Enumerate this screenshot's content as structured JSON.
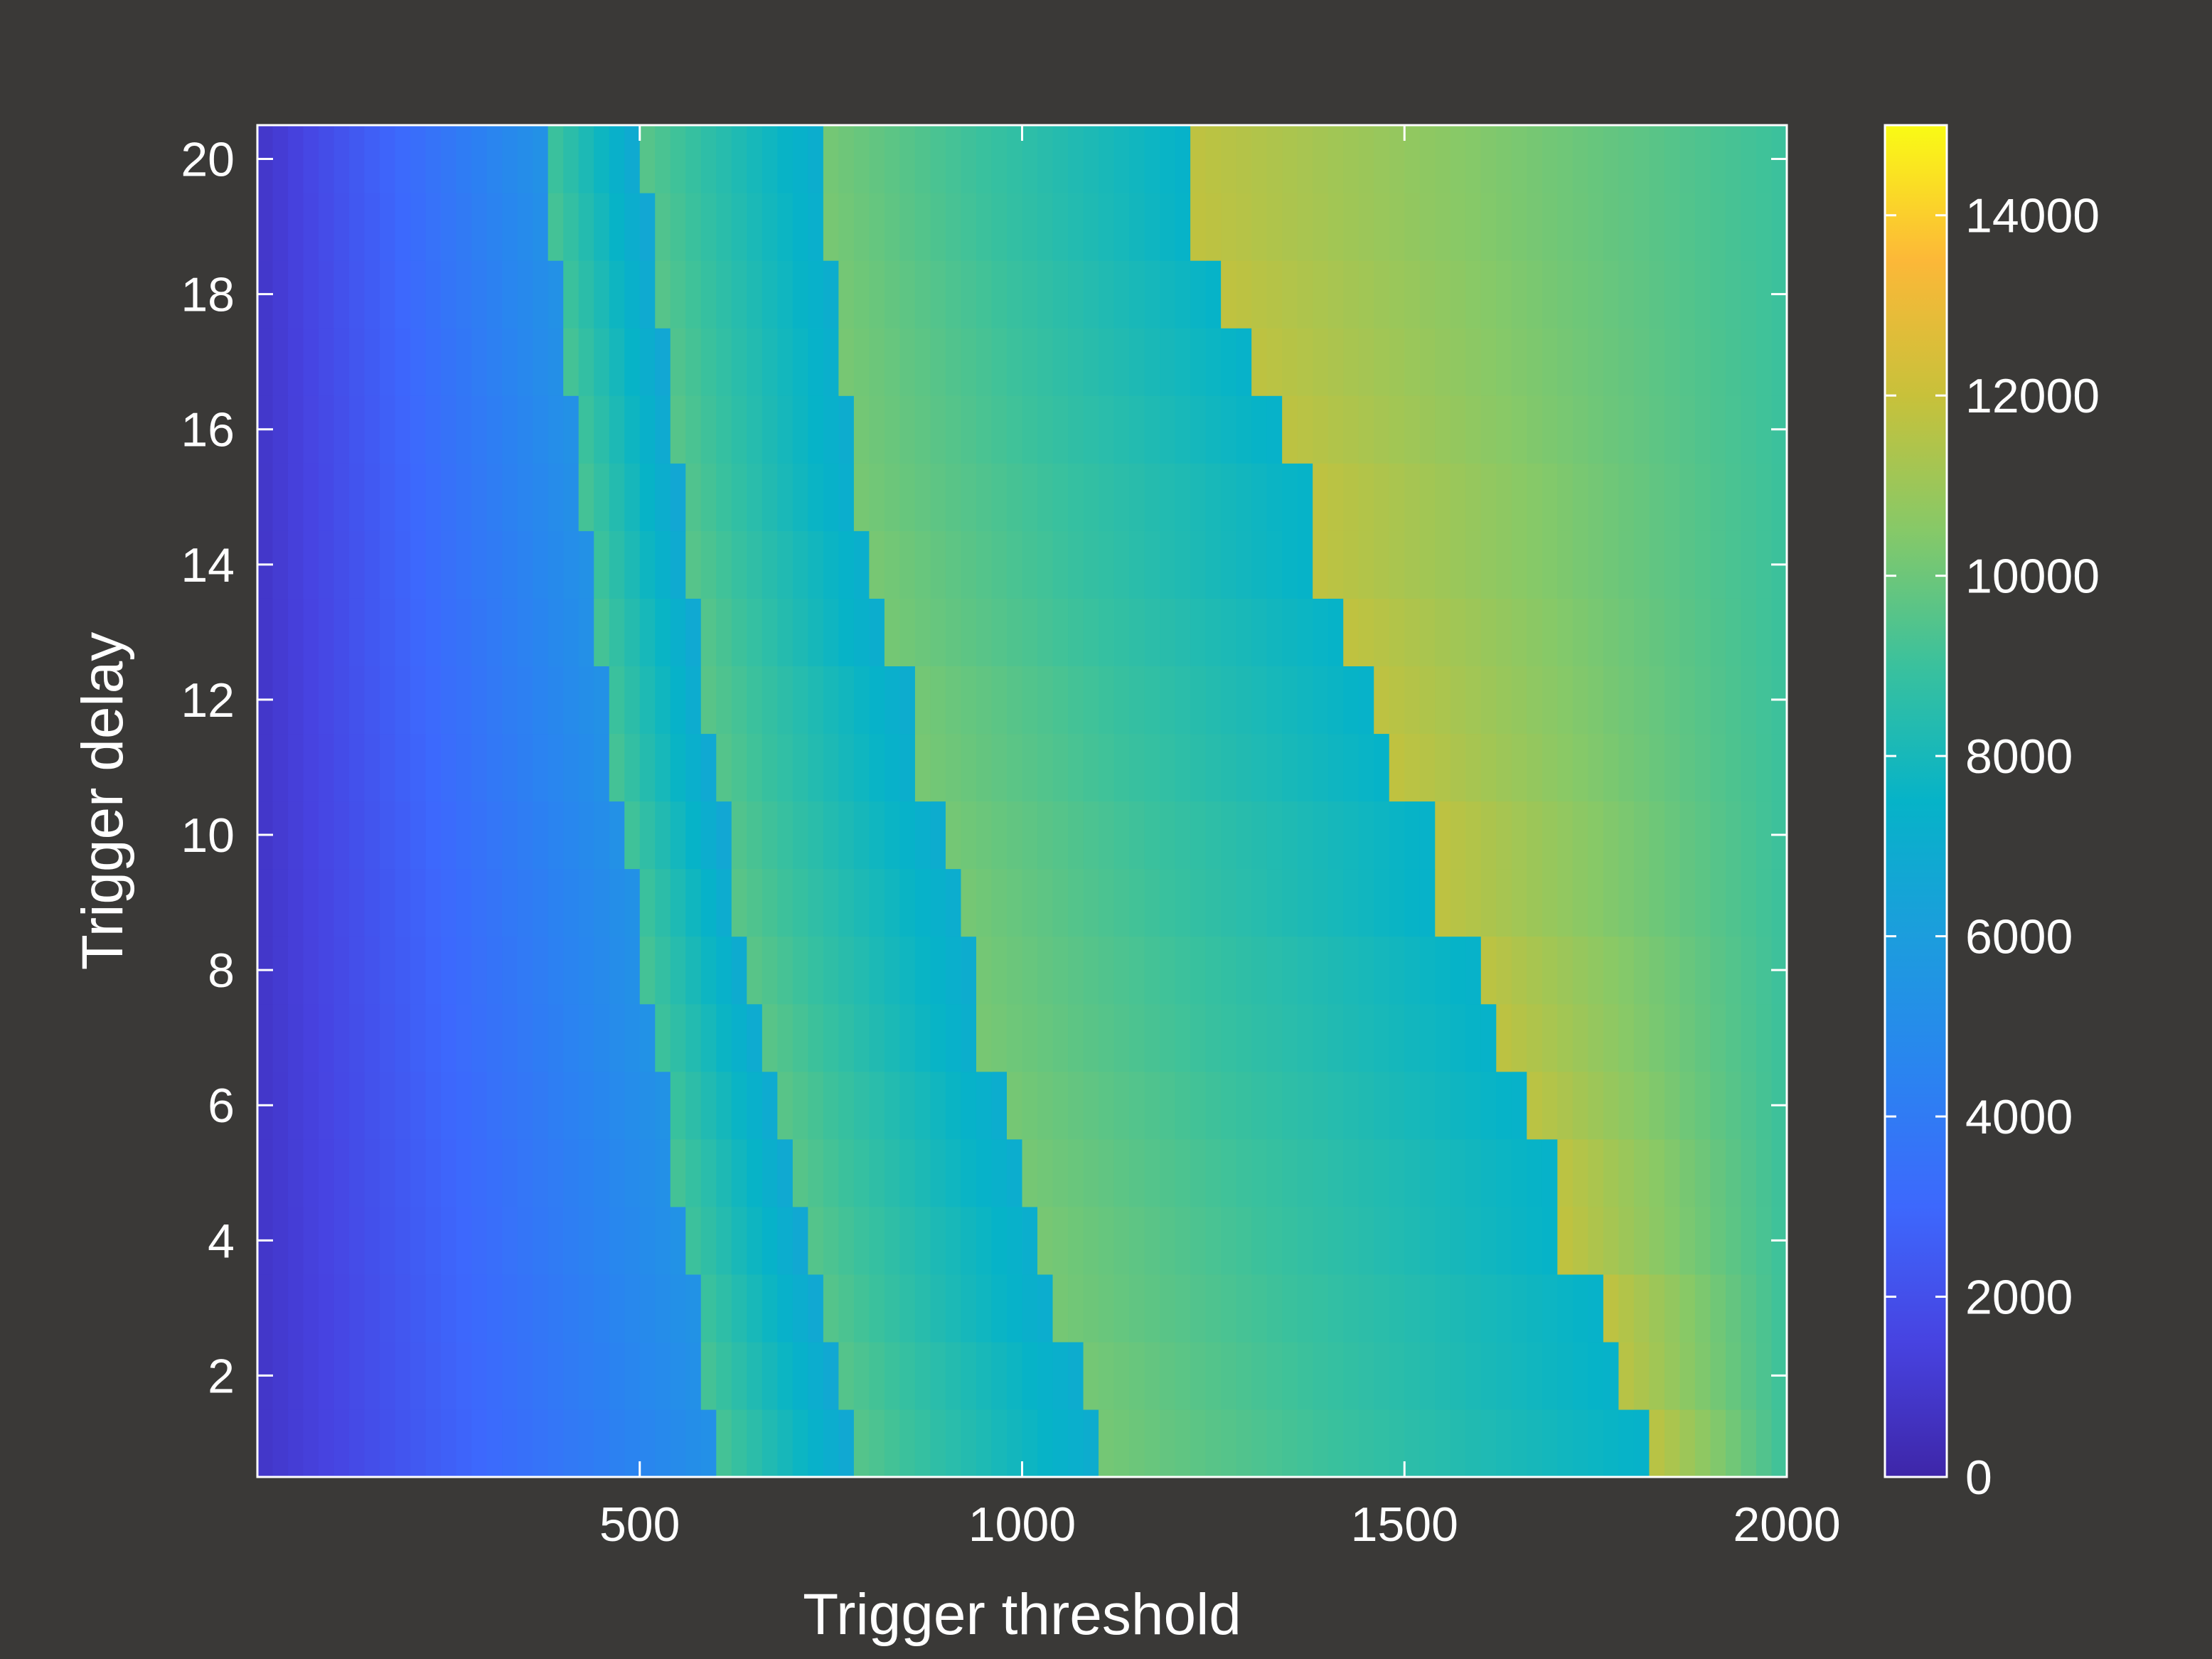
{
  "chart_data": {
    "type": "heatmap",
    "title": "",
    "xlabel": "Trigger threshold",
    "ylabel": "Trigger delay",
    "xlim": [
      0,
      2000
    ],
    "ylim": [
      0.5,
      20.5
    ],
    "clim": [
      0,
      15000
    ],
    "x_ticks": [
      500,
      1000,
      1500,
      2000
    ],
    "y_ticks": [
      2,
      4,
      6,
      8,
      10,
      12,
      14,
      16,
      18,
      20
    ],
    "colorbar_ticks": [
      0,
      2000,
      4000,
      6000,
      8000,
      10000,
      12000,
      14000
    ],
    "x_tick_labels": [
      "500",
      "1000",
      "1500",
      "2000"
    ],
    "y_tick_labels": [
      "2",
      "4",
      "6",
      "8",
      "10",
      "12",
      "14",
      "16",
      "18",
      "20"
    ],
    "colorbar_tick_labels": [
      "0",
      "2000",
      "4000",
      "6000",
      "8000",
      "10000",
      "12000",
      "14000"
    ],
    "delays": [
      1,
      2,
      3,
      4,
      5,
      6,
      7,
      8,
      9,
      10,
      11,
      12,
      13,
      14,
      15,
      16,
      17,
      18,
      19,
      20
    ],
    "x_resolution": 20,
    "value_model": {
      "description": "Value increases with threshold and drops at band boundaries that shift left as delay increases",
      "band_boundaries_by_delay": {
        "b1": [
          610,
          590,
          575,
          560,
          550,
          535,
          520,
          510,
          500,
          485,
          470,
          460,
          450,
          440,
          430,
          420,
          410,
          400,
          390,
          380
        ],
        "b2": [
          780,
          760,
          740,
          720,
          705,
          690,
          670,
          650,
          630,
          615,
          600,
          590,
          580,
          565,
          555,
          545,
          535,
          525,
          515,
          505
        ],
        "b3": [
          1095,
          1075,
          1040,
          1030,
          1000,
          980,
          950,
          935,
          920,
          895,
          870,
          855,
          820,
          810,
          785,
          775,
          770,
          760,
          750,
          740
        ],
        "b4": [
          1820,
          1775,
          1765,
          1710,
          1700,
          1655,
          1620,
          1595,
          1540,
          1540,
          1490,
          1460,
          1430,
          1385,
          1385,
          1335,
          1300,
          1270,
          1230,
          1220
        ]
      },
      "level_values": {
        "start": 800,
        "before_b1": 5400,
        "after_b1_peak": 9200,
        "before_b2": 6600,
        "after_b2_peak": 9600,
        "before_b3": 7000,
        "after_b3_peak": 10200,
        "before_b4": 7400,
        "after_b4_peak": 11800,
        "end": 9000
      }
    }
  },
  "colormap": {
    "name": "parula",
    "stops": [
      [
        0.0,
        "#3e26a8"
      ],
      [
        0.1,
        "#4743e1"
      ],
      [
        0.2,
        "#3d68fd"
      ],
      [
        0.3,
        "#2a84f0"
      ],
      [
        0.4,
        "#1c9ddd"
      ],
      [
        0.5,
        "#06b3c8"
      ],
      [
        0.6,
        "#3ac19d"
      ],
      [
        0.7,
        "#86c968"
      ],
      [
        0.8,
        "#c8c13a"
      ],
      [
        0.9,
        "#fcb838"
      ],
      [
        1.0,
        "#f9fb15"
      ]
    ]
  },
  "colors": {
    "background": "#3a3937",
    "axis": "#ffffff",
    "text": "#ffffff"
  }
}
